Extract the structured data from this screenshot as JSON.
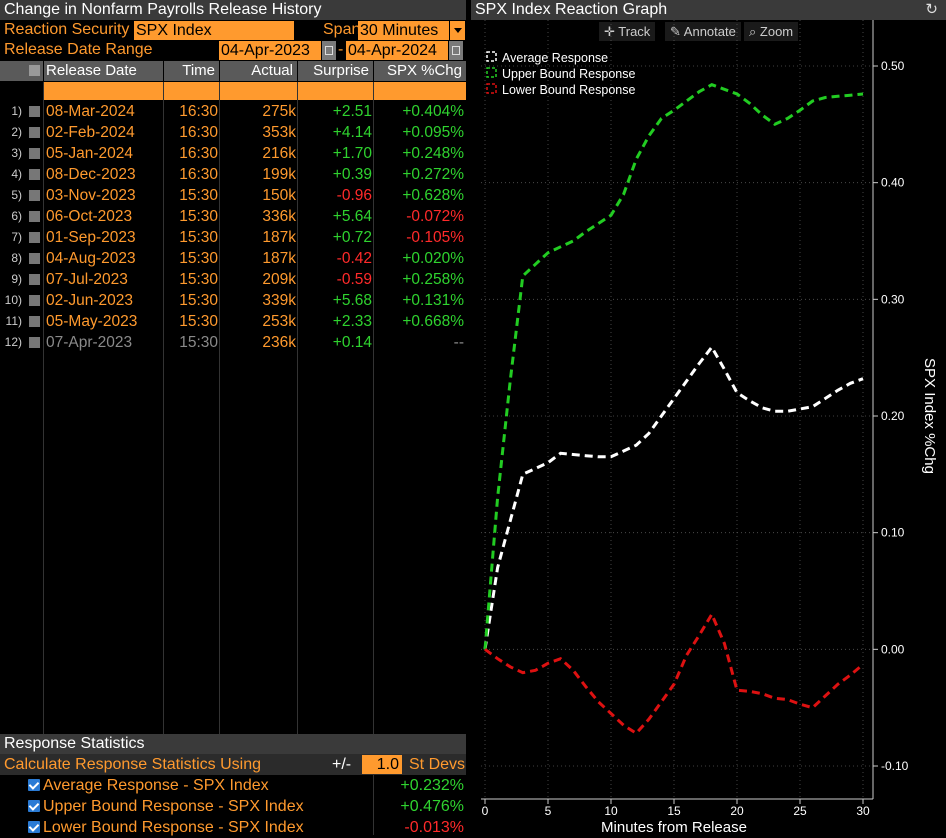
{
  "left_panel": {
    "title": "Change in Nonfarm Payrolls Release History",
    "reaction_security_label": "Reaction Security",
    "reaction_security_value": "SPX Index",
    "span_label": "Span",
    "span_value": "30 Minutes",
    "release_range_label": "Release Date Range",
    "range_start": "04-Apr-2023",
    "range_sep": "-",
    "range_end": "04-Apr-2024",
    "columns": [
      "Release Date",
      "Time",
      "Actual",
      "Surprise",
      "SPX %Chg"
    ],
    "rows": [
      {
        "n": "1)",
        "date": "08-Mar-2024",
        "time": "16:30",
        "actual": "275k",
        "surprise": "+2.51",
        "chg": "+0.404%",
        "s_color": "green",
        "c_color": "green",
        "dim": false
      },
      {
        "n": "2)",
        "date": "02-Feb-2024",
        "time": "16:30",
        "actual": "353k",
        "surprise": "+4.14",
        "chg": "+0.095%",
        "s_color": "green",
        "c_color": "green",
        "dim": false
      },
      {
        "n": "3)",
        "date": "05-Jan-2024",
        "time": "16:30",
        "actual": "216k",
        "surprise": "+1.70",
        "chg": "+0.248%",
        "s_color": "green",
        "c_color": "green",
        "dim": false
      },
      {
        "n": "4)",
        "date": "08-Dec-2023",
        "time": "16:30",
        "actual": "199k",
        "surprise": "+0.39",
        "chg": "+0.272%",
        "s_color": "green",
        "c_color": "green",
        "dim": false
      },
      {
        "n": "5)",
        "date": "03-Nov-2023",
        "time": "15:30",
        "actual": "150k",
        "surprise": "-0.96",
        "chg": "+0.628%",
        "s_color": "red",
        "c_color": "green",
        "dim": false
      },
      {
        "n": "6)",
        "date": "06-Oct-2023",
        "time": "15:30",
        "actual": "336k",
        "surprise": "+5.64",
        "chg": "-0.072%",
        "s_color": "green",
        "c_color": "red",
        "dim": false
      },
      {
        "n": "7)",
        "date": "01-Sep-2023",
        "time": "15:30",
        "actual": "187k",
        "surprise": "+0.72",
        "chg": "-0.105%",
        "s_color": "green",
        "c_color": "red",
        "dim": false
      },
      {
        "n": "8)",
        "date": "04-Aug-2023",
        "time": "15:30",
        "actual": "187k",
        "surprise": "-0.42",
        "chg": "+0.020%",
        "s_color": "red",
        "c_color": "green",
        "dim": false
      },
      {
        "n": "9)",
        "date": "07-Jul-2023",
        "time": "15:30",
        "actual": "209k",
        "surprise": "-0.59",
        "chg": "+0.258%",
        "s_color": "red",
        "c_color": "green",
        "dim": false
      },
      {
        "n": "10)",
        "date": "02-Jun-2023",
        "time": "15:30",
        "actual": "339k",
        "surprise": "+5.68",
        "chg": "+0.131%",
        "s_color": "green",
        "c_color": "green",
        "dim": false
      },
      {
        "n": "11)",
        "date": "05-May-2023",
        "time": "15:30",
        "actual": "253k",
        "surprise": "+2.33",
        "chg": "+0.668%",
        "s_color": "green",
        "c_color": "green",
        "dim": false
      },
      {
        "n": "12)",
        "date": "07-Apr-2023",
        "time": "15:30",
        "actual": "236k",
        "surprise": "+0.14",
        "chg": "--",
        "s_color": "green",
        "c_color": "gray",
        "dim": true
      }
    ],
    "stats_title": "Response Statistics",
    "stats_calc_label": "Calculate Response Statistics Using",
    "stats_pm": "+/-",
    "stats_dev_value": "1.0",
    "stats_dev_label": "St Devs",
    "stats": [
      {
        "label": "Average Response - SPX Index",
        "value": "+0.232%",
        "color": "green"
      },
      {
        "label": "Upper Bound Response - SPX Index",
        "value": "+0.476%",
        "color": "green"
      },
      {
        "label": "Lower Bound Response - SPX Index",
        "value": "-0.013%",
        "color": "red"
      }
    ]
  },
  "right_panel": {
    "title": "SPX Index Reaction Graph",
    "refresh_icon": "refresh-icon",
    "toolbar": {
      "track": "Track",
      "annotate": "Annotate",
      "zoom": "Zoom"
    }
  },
  "chart_data": {
    "type": "line",
    "xlabel": "Minutes from Release",
    "ylabel": "SPX Index %Chg",
    "xlim": [
      0,
      30
    ],
    "ylim": [
      -0.1,
      0.5
    ],
    "xticks": [
      0,
      5,
      10,
      15,
      20,
      25,
      30
    ],
    "yticks": [
      -0.1,
      0.0,
      0.1,
      0.2,
      0.3,
      0.4,
      0.5
    ],
    "yticklabels": [
      "-0.10",
      "0.00",
      "0.10",
      "0.20",
      "0.30",
      "0.40",
      "0.50"
    ],
    "grid": true,
    "legend_position": "top-left",
    "series": [
      {
        "name": "Average Response",
        "color": "#ffffff",
        "x": [
          0,
          1,
          2,
          3,
          4,
          5,
          6,
          7,
          8,
          9,
          10,
          11,
          12,
          13,
          14,
          15,
          16,
          17,
          18,
          19,
          20,
          21,
          22,
          23,
          24,
          25,
          26,
          27,
          28,
          29,
          30
        ],
        "values": [
          0.0,
          0.07,
          0.11,
          0.15,
          0.155,
          0.16,
          0.168,
          0.167,
          0.166,
          0.165,
          0.165,
          0.17,
          0.175,
          0.185,
          0.2,
          0.215,
          0.23,
          0.245,
          0.259,
          0.24,
          0.22,
          0.213,
          0.207,
          0.204,
          0.204,
          0.206,
          0.208,
          0.215,
          0.222,
          0.228,
          0.232
        ]
      },
      {
        "name": "Upper Bound Response",
        "color": "#22cc22",
        "x": [
          0,
          1,
          2,
          3,
          4,
          5,
          6,
          7,
          8,
          9,
          10,
          11,
          12,
          13,
          14,
          15,
          16,
          17,
          18,
          19,
          20,
          21,
          22,
          23,
          24,
          25,
          26,
          27,
          28,
          29,
          30
        ],
        "values": [
          0.0,
          0.13,
          0.23,
          0.32,
          0.33,
          0.34,
          0.345,
          0.35,
          0.358,
          0.365,
          0.372,
          0.39,
          0.42,
          0.44,
          0.455,
          0.462,
          0.47,
          0.478,
          0.484,
          0.48,
          0.476,
          0.468,
          0.458,
          0.45,
          0.455,
          0.462,
          0.47,
          0.473,
          0.474,
          0.475,
          0.476
        ]
      },
      {
        "name": "Lower Bound Response",
        "color": "#dd1111",
        "x": [
          0,
          1,
          2,
          3,
          4,
          5,
          6,
          7,
          8,
          9,
          10,
          11,
          12,
          13,
          14,
          15,
          16,
          17,
          18,
          19,
          20,
          21,
          22,
          23,
          24,
          25,
          26,
          27,
          28,
          29,
          30
        ],
        "values": [
          0.0,
          -0.008,
          -0.015,
          -0.02,
          -0.018,
          -0.012,
          -0.008,
          -0.018,
          -0.032,
          -0.045,
          -0.055,
          -0.065,
          -0.072,
          -0.06,
          -0.045,
          -0.03,
          -0.005,
          0.012,
          0.03,
          0.005,
          -0.035,
          -0.036,
          -0.038,
          -0.042,
          -0.043,
          -0.047,
          -0.05,
          -0.04,
          -0.03,
          -0.022,
          -0.013
        ]
      }
    ]
  }
}
